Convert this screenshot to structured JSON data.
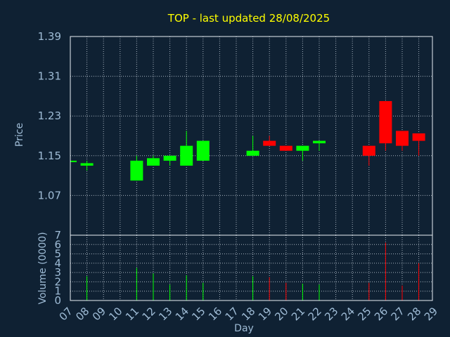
{
  "chart_data": [
    {
      "type": "candlestick",
      "title": "TOP - last updated 28/08/2025",
      "ylabel": "Price",
      "ylim": [
        0.99,
        1.39
      ],
      "yticks": [
        "1.39",
        "1.31",
        "1.23",
        "1.15",
        "1.07"
      ],
      "grid": true,
      "up_color": "#00ff00",
      "down_color": "#ff0000",
      "candles": [
        {
          "day": "07",
          "open": 1.14,
          "high": 1.14,
          "low": 1.14,
          "close": 1.14
        },
        {
          "day": "08",
          "open": 1.13,
          "high": 1.14,
          "low": 1.12,
          "close": 1.135
        },
        {
          "day": "11",
          "open": 1.1,
          "high": 1.15,
          "low": 1.1,
          "close": 1.14
        },
        {
          "day": "12",
          "open": 1.13,
          "high": 1.15,
          "low": 1.13,
          "close": 1.145
        },
        {
          "day": "13",
          "open": 1.14,
          "high": 1.15,
          "low": 1.13,
          "close": 1.15
        },
        {
          "day": "14",
          "open": 1.13,
          "high": 1.2,
          "low": 1.13,
          "close": 1.17
        },
        {
          "day": "15",
          "open": 1.14,
          "high": 1.18,
          "low": 1.14,
          "close": 1.18
        },
        {
          "day": "18",
          "open": 1.15,
          "high": 1.19,
          "low": 1.15,
          "close": 1.16
        },
        {
          "day": "19",
          "open": 1.18,
          "high": 1.19,
          "low": 1.17,
          "close": 1.17
        },
        {
          "day": "20",
          "open": 1.17,
          "high": 1.17,
          "low": 1.16,
          "close": 1.16
        },
        {
          "day": "21",
          "open": 1.16,
          "high": 1.17,
          "low": 1.14,
          "close": 1.17
        },
        {
          "day": "22",
          "open": 1.175,
          "high": 1.18,
          "low": 1.16,
          "close": 1.18
        },
        {
          "day": "25",
          "open": 1.17,
          "high": 1.17,
          "low": 1.13,
          "close": 1.15
        },
        {
          "day": "26",
          "open": 1.26,
          "high": 1.26,
          "low": 1.16,
          "close": 1.175
        },
        {
          "day": "27",
          "open": 1.2,
          "high": 1.2,
          "low": 1.16,
          "close": 1.17
        },
        {
          "day": "28",
          "open": 1.195,
          "high": 1.195,
          "low": 1.15,
          "close": 1.18
        }
      ]
    },
    {
      "type": "bar",
      "xlabel": "Day",
      "ylabel": "Volume (0000)",
      "ylim": [
        0,
        7
      ],
      "yticks": [
        "0",
        "1",
        "2",
        "3",
        "4",
        "5",
        "6",
        "7"
      ],
      "x_ticks": [
        "07",
        "08",
        "09",
        "10",
        "11",
        "12",
        "13",
        "14",
        "15",
        "16",
        "17",
        "18",
        "19",
        "20",
        "21",
        "22",
        "23",
        "24",
        "25",
        "26",
        "27",
        "28",
        "29"
      ],
      "values": [
        {
          "day": "07",
          "volume": 0.1,
          "direction": "up"
        },
        {
          "day": "08",
          "volume": 2.6,
          "direction": "up"
        },
        {
          "day": "11",
          "volume": 3.5,
          "direction": "up"
        },
        {
          "day": "12",
          "volume": 2.9,
          "direction": "up"
        },
        {
          "day": "13",
          "volume": 1.7,
          "direction": "up"
        },
        {
          "day": "14",
          "volume": 2.7,
          "direction": "up"
        },
        {
          "day": "15",
          "volume": 1.9,
          "direction": "up"
        },
        {
          "day": "18",
          "volume": 2.6,
          "direction": "up"
        },
        {
          "day": "19",
          "volume": 2.5,
          "direction": "down"
        },
        {
          "day": "20",
          "volume": 1.9,
          "direction": "down"
        },
        {
          "day": "21",
          "volume": 1.8,
          "direction": "up"
        },
        {
          "day": "22",
          "volume": 1.7,
          "direction": "up"
        },
        {
          "day": "25",
          "volume": 1.9,
          "direction": "down"
        },
        {
          "day": "26",
          "volume": 6.2,
          "direction": "down"
        },
        {
          "day": "27",
          "volume": 1.6,
          "direction": "down"
        },
        {
          "day": "28",
          "volume": 4.0,
          "direction": "down"
        }
      ]
    }
  ]
}
